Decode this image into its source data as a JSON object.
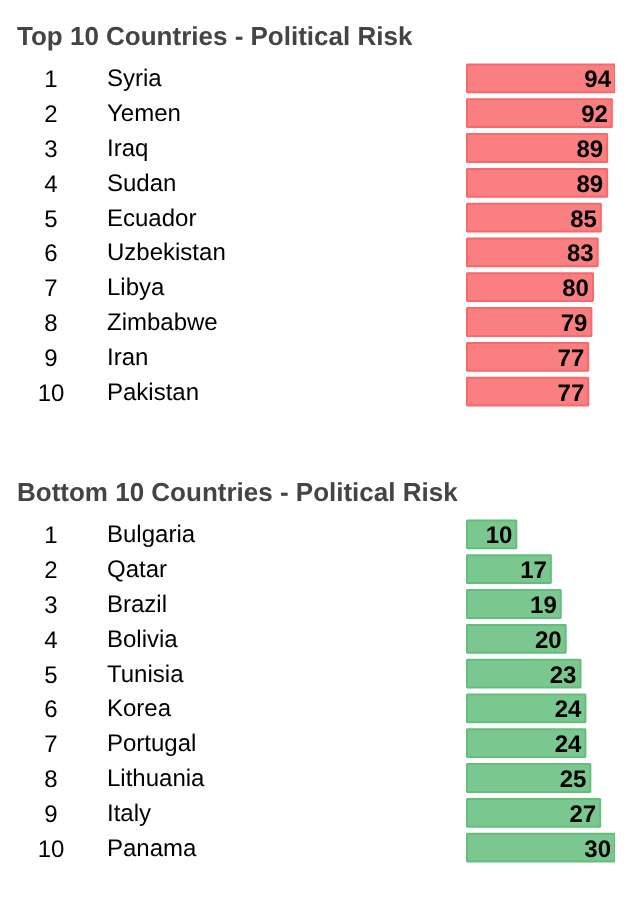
{
  "chart_data": [
    {
      "type": "bar",
      "orientation": "horizontal",
      "title": "Top 10 Countries - Political Risk",
      "categories": [
        "1 Syria",
        "2 Yemen",
        "3 Iraq",
        "4 Sudan",
        "5 Ecuador",
        "6 Uzbekistan",
        "7 Libya",
        "8 Zimbabwe",
        "9 Iran",
        "10 Pakistan"
      ],
      "values": [
        94,
        92,
        89,
        89,
        85,
        83,
        80,
        79,
        77,
        77
      ],
      "color": "#f8696b",
      "data_labels": true
    },
    {
      "type": "bar",
      "orientation": "horizontal",
      "title": "Bottom 10 Countries - Political Risk",
      "categories": [
        "1 Bulgaria",
        "2 Qatar",
        "3 Brazil",
        "4 Bolivia",
        "5 Tunisia",
        "6 Korea",
        "7 Portugal",
        "8 Lithuania",
        "9 Italy",
        "10 Panama"
      ],
      "values": [
        10,
        17,
        19,
        20,
        23,
        24,
        24,
        25,
        27,
        30
      ],
      "color": "#63be7b",
      "data_labels": true
    }
  ]
}
